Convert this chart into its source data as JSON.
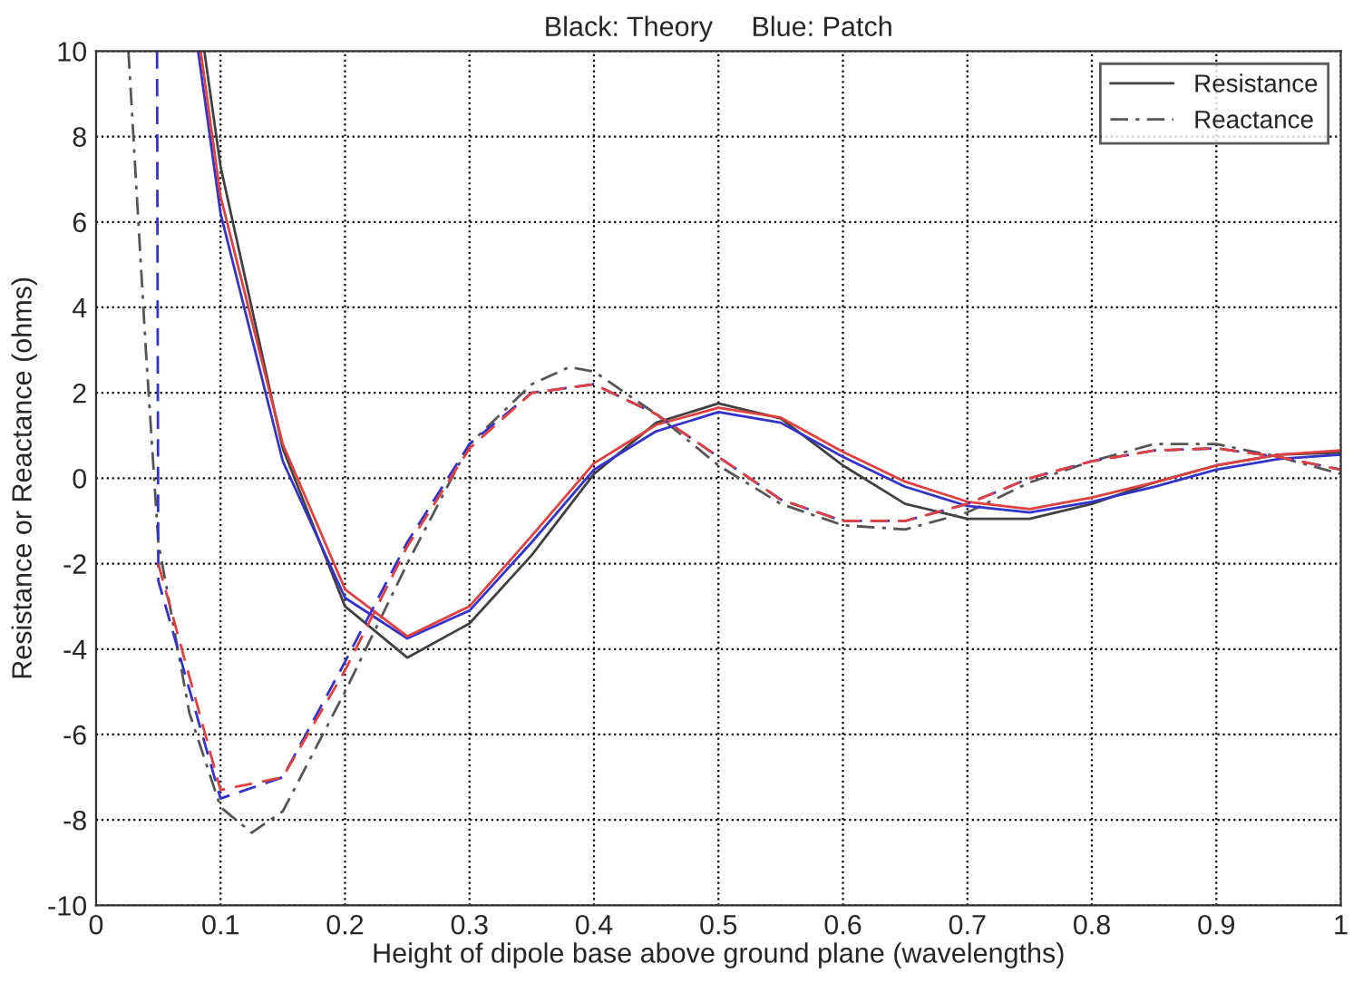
{
  "chart_data": {
    "type": "line",
    "title": "Black: Theory     Blue: Patch",
    "xlabel": "Height of dipole base above ground plane (wavelengths)",
    "ylabel": "Resistance or Reactance (ohms)",
    "xlim": [
      0,
      1
    ],
    "xticks": [
      0,
      0.1,
      0.2,
      0.3,
      0.4,
      0.5,
      0.6,
      0.7,
      0.8,
      0.9,
      1
    ],
    "ylim": [
      -10,
      10
    ],
    "yticks": [
      -10,
      -8,
      -6,
      -4,
      -2,
      0,
      2,
      4,
      6,
      8,
      10
    ],
    "grid": true,
    "legend": "top right",
    "series": [
      {
        "name": "Resistance",
        "color": "#404040",
        "line_style": "solid",
        "x": [
          0.087,
          0.1,
          0.15,
          0.2,
          0.25,
          0.3,
          0.35,
          0.4,
          0.45,
          0.5,
          0.55,
          0.6,
          0.65,
          0.7,
          0.75,
          0.8,
          0.85,
          0.9,
          0.95,
          1.0
        ],
        "values": [
          10,
          7.3,
          0.7,
          -3.0,
          -4.2,
          -3.4,
          -1.8,
          0.1,
          1.3,
          1.75,
          1.4,
          0.3,
          -0.6,
          -0.95,
          -0.95,
          -0.6,
          -0.1,
          0.3,
          0.55,
          0.6
        ]
      },
      {
        "name": "Reactance",
        "color": "#555555",
        "line_style": "dashdot",
        "x": [
          0.026,
          0.04,
          0.05,
          0.075,
          0.1,
          0.125,
          0.15,
          0.2,
          0.25,
          0.3,
          0.35,
          0.38,
          0.4,
          0.45,
          0.5,
          0.55,
          0.6,
          0.65,
          0.7,
          0.75,
          0.8,
          0.85,
          0.9,
          0.95,
          1.0
        ],
        "values": [
          10,
          3.0,
          -1.5,
          -5.5,
          -7.7,
          -8.3,
          -7.8,
          -5.0,
          -2.0,
          0.8,
          2.2,
          2.6,
          2.5,
          1.5,
          0.3,
          -0.6,
          -1.1,
          -1.2,
          -0.8,
          -0.1,
          0.4,
          0.8,
          0.8,
          0.5,
          0.1
        ]
      },
      {
        "color": "#3333cc",
        "line_style": "solid",
        "x": [
          0.082,
          0.1,
          0.15,
          0.2,
          0.25,
          0.3,
          0.35,
          0.4,
          0.45,
          0.5,
          0.55,
          0.6,
          0.65,
          0.7,
          0.75,
          0.8,
          0.85,
          0.9,
          0.95,
          1.0
        ],
        "values": [
          10,
          6.2,
          0.4,
          -2.8,
          -3.75,
          -3.1,
          -1.5,
          0.2,
          1.1,
          1.55,
          1.3,
          0.5,
          -0.2,
          -0.65,
          -0.8,
          -0.55,
          -0.2,
          0.2,
          0.45,
          0.55
        ]
      },
      {
        "color": "#e04040",
        "line_style": "solid",
        "x": [
          0.084,
          0.1,
          0.15,
          0.2,
          0.25,
          0.3,
          0.35,
          0.4,
          0.45,
          0.5,
          0.55,
          0.6,
          0.65,
          0.7,
          0.75,
          0.8,
          0.85,
          0.9,
          0.95,
          1.0
        ],
        "values": [
          10,
          6.6,
          0.8,
          -2.6,
          -3.7,
          -3.0,
          -1.35,
          0.35,
          1.25,
          1.65,
          1.42,
          0.62,
          -0.08,
          -0.55,
          -0.72,
          -0.45,
          -0.1,
          0.3,
          0.55,
          0.65
        ]
      },
      {
        "color": "#3333cc",
        "line_style": "dashed",
        "x": [
          0.049,
          0.05,
          0.1,
          0.15,
          0.2,
          0.25,
          0.3,
          0.35,
          0.4,
          0.45,
          0.5,
          0.55,
          0.6,
          0.65,
          0.7,
          0.75,
          0.8,
          0.85,
          0.9,
          0.95,
          1.0
        ],
        "values": [
          10,
          -2.4,
          -7.5,
          -7.0,
          -4.3,
          -1.5,
          0.8,
          2.0,
          2.2,
          1.5,
          0.5,
          -0.5,
          -1.0,
          -1.0,
          -0.6,
          0.0,
          0.4,
          0.65,
          0.7,
          0.5,
          0.2
        ]
      },
      {
        "color": "#e04040",
        "line_style": "dashed",
        "x": [
          0.05,
          0.1,
          0.15,
          0.2,
          0.25,
          0.3,
          0.35,
          0.4,
          0.45,
          0.5,
          0.55,
          0.6,
          0.65,
          0.7,
          0.75,
          0.8,
          0.85,
          0.9,
          0.95,
          1.0
        ],
        "values": [
          -2.0,
          -7.3,
          -7.0,
          -4.5,
          -1.6,
          0.7,
          2.0,
          2.2,
          1.5,
          0.5,
          -0.5,
          -1.0,
          -1.0,
          -0.6,
          0.0,
          0.4,
          0.65,
          0.7,
          0.5,
          0.2
        ]
      }
    ]
  }
}
